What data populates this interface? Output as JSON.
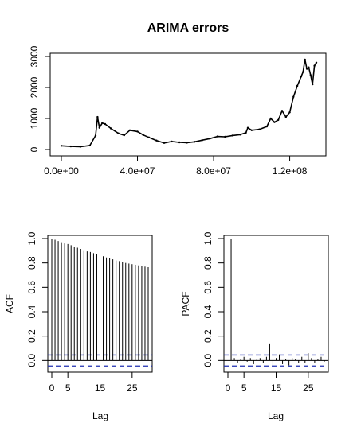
{
  "chart_data": [
    {
      "type": "line",
      "title": "ARIMA errors",
      "xlabel": "",
      "ylabel": "",
      "xlim": [
        0,
        134000000
      ],
      "ylim": [
        0,
        3000
      ],
      "x_ticks": [
        0,
        40000000,
        80000000,
        120000000
      ],
      "x_tick_labels": [
        "0.0e+00",
        "4.0e+07",
        "8.0e+07",
        "1.2e+08"
      ],
      "y_ticks": [
        0,
        1000,
        2000,
        3000
      ],
      "y_tick_labels": [
        "0",
        "1000",
        "2000",
        "3000"
      ],
      "series": [
        {
          "x": [
            0,
            5000000,
            10000000,
            15000000,
            18000000,
            19000000,
            20000000,
            21500000,
            23000000,
            26000000,
            30000000,
            33000000,
            36000000,
            40000000,
            43000000,
            46000000,
            50000000,
            54000000,
            58000000,
            62000000,
            66000000,
            70000000,
            74000000,
            78000000,
            82000000,
            86000000,
            90000000,
            94000000,
            97000000,
            98000000,
            100000000,
            104000000,
            108000000,
            110000000,
            112000000,
            114000000,
            116000000,
            118000000,
            120000000,
            122000000,
            124000000,
            126000000,
            127000000,
            128000000,
            129000000,
            130000000,
            131000000,
            132000000,
            133000000,
            134000000
          ],
          "y": [
            120,
            100,
            90,
            130,
            450,
            1050,
            700,
            850,
            820,
            680,
            520,
            460,
            620,
            580,
            470,
            390,
            290,
            210,
            260,
            230,
            220,
            250,
            300,
            350,
            420,
            410,
            450,
            480,
            540,
            700,
            620,
            650,
            740,
            1000,
            880,
            950,
            1250,
            1050,
            1200,
            1700,
            2050,
            2350,
            2500,
            2900,
            2600,
            2650,
            2400,
            2100,
            2700,
            2800
          ]
        }
      ]
    },
    {
      "type": "bar",
      "title": "",
      "xlabel": "Lag",
      "ylabel": "ACF",
      "xlim": [
        0,
        30
      ],
      "ylim": [
        -0.05,
        1.0
      ],
      "x_ticks": [
        0,
        5,
        15,
        25
      ],
      "y_ticks": [
        0.0,
        0.2,
        0.4,
        0.6,
        0.8,
        1.0
      ],
      "y_tick_labels": [
        "0.0",
        "0.2",
        "0.4",
        "0.6",
        "0.8",
        "1.0"
      ],
      "conf_limit": 0.045,
      "lags": [
        0,
        1,
        2,
        3,
        4,
        5,
        6,
        7,
        8,
        9,
        10,
        11,
        12,
        13,
        14,
        15,
        16,
        17,
        18,
        19,
        20,
        21,
        22,
        23,
        24,
        25,
        26,
        27,
        28,
        29,
        30
      ],
      "values": [
        1.0,
        0.99,
        0.98,
        0.97,
        0.96,
        0.955,
        0.945,
        0.935,
        0.925,
        0.915,
        0.905,
        0.895,
        0.89,
        0.88,
        0.87,
        0.865,
        0.855,
        0.845,
        0.84,
        0.83,
        0.82,
        0.815,
        0.805,
        0.8,
        0.795,
        0.79,
        0.785,
        0.78,
        0.775,
        0.77,
        0.765
      ]
    },
    {
      "type": "bar",
      "title": "",
      "xlabel": "Lag",
      "ylabel": "PACF",
      "xlim": [
        0,
        30
      ],
      "ylim": [
        -0.05,
        1.0
      ],
      "x_ticks": [
        0,
        5,
        15,
        25
      ],
      "y_ticks": [
        0.0,
        0.2,
        0.4,
        0.6,
        0.8,
        1.0
      ],
      "y_tick_labels": [
        "0.0",
        "0.2",
        "0.4",
        "0.6",
        "0.8",
        "1.0"
      ],
      "conf_limit": 0.045,
      "lags": [
        1,
        2,
        3,
        4,
        5,
        6,
        7,
        8,
        9,
        10,
        11,
        12,
        13,
        14,
        15,
        16,
        17,
        18,
        19,
        20,
        21,
        22,
        23,
        24,
        25,
        26,
        27,
        28,
        29,
        30
      ],
      "values": [
        1.0,
        0.02,
        -0.02,
        0.01,
        0.03,
        -0.01,
        0.02,
        -0.03,
        0.01,
        0.02,
        -0.02,
        0.03,
        0.14,
        -0.04,
        0.02,
        0.05,
        -0.03,
        0.01,
        -0.04,
        0.02,
        0.01,
        -0.02,
        0.03,
        -0.02,
        0.06,
        0.02,
        -0.02,
        0.01,
        0.03,
        -0.01
      ]
    }
  ]
}
